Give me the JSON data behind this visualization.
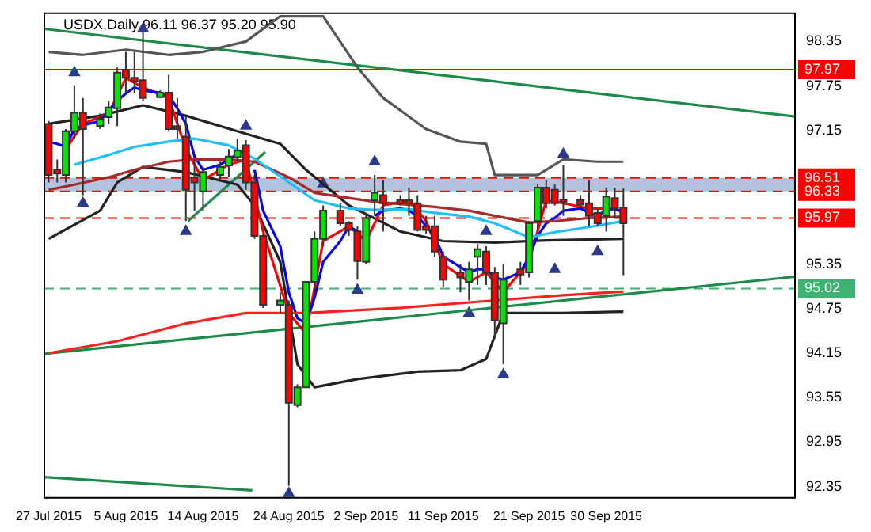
{
  "chart_data": {
    "type": "candlestick",
    "title": "USDX,Daily 96.11 96.37 95.20 95.90",
    "x": [
      "2015-07-27",
      "2015-07-28",
      "2015-07-29",
      "2015-07-30",
      "2015-07-31",
      "2015-08-02",
      "2015-08-03",
      "2015-08-04",
      "2015-08-05",
      "2015-08-06",
      "2015-08-07",
      "2015-08-09",
      "2015-08-10",
      "2015-08-11",
      "2015-08-12",
      "2015-08-13",
      "2015-08-14",
      "2015-08-16",
      "2015-08-17",
      "2015-08-18",
      "2015-08-19",
      "2015-08-20",
      "2015-08-21",
      "2015-08-23",
      "2015-08-24",
      "2015-08-25",
      "2015-08-26",
      "2015-08-27",
      "2015-08-28",
      "2015-08-30",
      "2015-08-31",
      "2015-09-01",
      "2015-09-02",
      "2015-09-03",
      "2015-09-04",
      "2015-09-06",
      "2015-09-07",
      "2015-09-08",
      "2015-09-09",
      "2015-09-10",
      "2015-09-11",
      "2015-09-13",
      "2015-09-14",
      "2015-09-15",
      "2015-09-16",
      "2015-09-17",
      "2015-09-18",
      "2015-09-20",
      "2015-09-21",
      "2015-09-22",
      "2015-09-23",
      "2015-09-24",
      "2015-09-25",
      "2015-09-27",
      "2015-09-28",
      "2015-09-29",
      "2015-09-30",
      "2015-10-01",
      "2015-10-02"
    ],
    "ohlc": [
      [
        97.24,
        97.28,
        96.45,
        96.55
      ],
      [
        96.62,
        96.76,
        96.45,
        96.57
      ],
      [
        96.55,
        97.17,
        96.45,
        97.14
      ],
      [
        97.14,
        97.76,
        97.04,
        97.39
      ],
      [
        97.39,
        97.59,
        96.28,
        97.17
      ],
      [
        97.21,
        97.38,
        97.17,
        97.31
      ],
      [
        97.33,
        97.55,
        97.24,
        97.46
      ],
      [
        97.45,
        98.0,
        97.21,
        97.93
      ],
      [
        97.97,
        98.21,
        97.66,
        97.86
      ],
      [
        97.86,
        98.21,
        97.66,
        97.81
      ],
      [
        97.83,
        98.48,
        97.55,
        97.59
      ],
      [
        97.6,
        97.69,
        97.59,
        97.66
      ],
      [
        97.66,
        97.9,
        97.14,
        97.17
      ],
      [
        97.21,
        97.59,
        97.04,
        97.17
      ],
      [
        97.07,
        97.35,
        95.93,
        96.35
      ],
      [
        96.52,
        96.76,
        96.07,
        96.45
      ],
      [
        96.33,
        96.66,
        96.07,
        96.59
      ],
      [
        96.55,
        96.73,
        96.48,
        96.66
      ],
      [
        96.68,
        96.9,
        96.52,
        96.8
      ],
      [
        96.79,
        97.04,
        96.73,
        96.88
      ],
      [
        96.95,
        97.02,
        96.35,
        96.45
      ],
      [
        96.45,
        96.55,
        95.69,
        95.73
      ],
      [
        95.73,
        95.76,
        94.76,
        94.8
      ],
      [
        94.8,
        94.97,
        94.69,
        94.86
      ],
      [
        94.8,
        94.86,
        92.36,
        93.48
      ],
      [
        93.45,
        93.73,
        93.42,
        93.69
      ],
      [
        93.69,
        95.11,
        93.69,
        95.11
      ],
      [
        95.11,
        95.79,
        94.97,
        95.69
      ],
      [
        95.69,
        96.14,
        95.59,
        96.07
      ],
      [
        96.07,
        96.17,
        95.86,
        95.9
      ],
      [
        95.9,
        95.93,
        95.73,
        95.81
      ],
      [
        95.79,
        95.86,
        95.14,
        95.39
      ],
      [
        95.38,
        96.04,
        95.35,
        95.97
      ],
      [
        96.21,
        96.55,
        96.0,
        96.31
      ],
      [
        96.28,
        96.48,
        95.79,
        96.17
      ],
      [
        96.21,
        96.28,
        96.14,
        96.17
      ],
      [
        96.21,
        96.38,
        96.0,
        96.17
      ],
      [
        96.17,
        96.28,
        95.79,
        95.81
      ],
      [
        95.86,
        96.0,
        95.76,
        95.81
      ],
      [
        95.86,
        96.0,
        95.45,
        95.52
      ],
      [
        95.45,
        95.52,
        95.04,
        95.14
      ],
      [
        95.24,
        95.35,
        94.97,
        95.17
      ],
      [
        95.11,
        95.38,
        94.86,
        95.28
      ],
      [
        95.45,
        95.62,
        95.07,
        95.55
      ],
      [
        95.52,
        95.59,
        95.07,
        95.24
      ],
      [
        95.24,
        95.31,
        94.35,
        94.59
      ],
      [
        94.55,
        95.35,
        94.0,
        95.14
      ],
      [
        95.28,
        95.38,
        95.07,
        95.21
      ],
      [
        95.24,
        95.93,
        95.17,
        95.9
      ],
      [
        95.93,
        96.42,
        95.79,
        96.38
      ],
      [
        96.38,
        96.48,
        96.1,
        96.17
      ],
      [
        96.35,
        96.42,
        96.14,
        96.17
      ],
      [
        96.22,
        96.69,
        96.0,
        96.19
      ],
      [
        96.21,
        96.28,
        96.1,
        96.15
      ],
      [
        96.17,
        96.48,
        95.86,
        96.0
      ],
      [
        96.04,
        96.1,
        95.86,
        95.9
      ],
      [
        96.0,
        96.38,
        95.79,
        96.26
      ],
      [
        96.24,
        96.38,
        95.97,
        96.1
      ],
      [
        96.11,
        96.37,
        95.2,
        95.9
      ]
    ],
    "colors": [
      "#ff0000",
      "#ff0000",
      "#00e600",
      "#00e600",
      "#ff0000",
      "#00e600",
      "#00e600",
      "#00e600",
      "#ff0000",
      "#ff0000",
      "#ff0000",
      "#00e600",
      "#ff0000",
      "#ff0000",
      "#ff0000",
      "#ff0000",
      "#00e600",
      "#00e600",
      "#00e600",
      "#00e600",
      "#ff0000",
      "#ff0000",
      "#ff0000",
      "#00e600",
      "#ff0000",
      "#00e600",
      "#00e600",
      "#00e600",
      "#00e600",
      "#ff0000",
      "#ff0000",
      "#ff0000",
      "#00e600",
      "#00e600",
      "#ff0000",
      "#ff0000",
      "#ff0000",
      "#ff0000",
      "#ff0000",
      "#ff0000",
      "#ff0000",
      "#ff0000",
      "#00e600",
      "#00e600",
      "#ff0000",
      "#ff0000",
      "#00e600",
      "#ff0000",
      "#00e600",
      "#00e600",
      "#ff0000",
      "#ff0000",
      "#ff0000",
      "#ff0000",
      "#ff0000",
      "#ff0000",
      "#00e600",
      "#ff0000",
      "#ff0000"
    ],
    "series": [
      {
        "type": "line",
        "color": "#1ebfff",
        "x": [
          "2015-07-30",
          "2015-08-03",
          "2015-08-06",
          "2015-08-10",
          "2015-08-13",
          "2015-08-17",
          "2015-08-20",
          "2015-08-24",
          "2015-08-27",
          "2015-08-31",
          "2015-09-03",
          "2015-09-07",
          "2015-09-10",
          "2015-09-14",
          "2015-09-17",
          "2015-09-21",
          "2015-09-24",
          "2015-09-28",
          "2015-10-02"
        ],
        "values": [
          96.69,
          96.82,
          96.93,
          97.0,
          97.04,
          96.95,
          96.77,
          96.45,
          96.21,
          96.1,
          96.08,
          96.09,
          96.04,
          95.99,
          95.9,
          95.71,
          95.78,
          95.85,
          95.93
        ]
      },
      {
        "type": "line",
        "color": "#a52a2a",
        "x": [
          "2015-07-27",
          "2015-07-30",
          "2015-08-03",
          "2015-08-06",
          "2015-08-10",
          "2015-08-13",
          "2015-08-17",
          "2015-08-20",
          "2015-08-24",
          "2015-08-27",
          "2015-08-31",
          "2015-09-03",
          "2015-09-07",
          "2015-09-10",
          "2015-09-14",
          "2015-09-17",
          "2015-09-21",
          "2015-09-24",
          "2015-09-28",
          "2015-10-02"
        ],
        "values": [
          96.35,
          96.42,
          96.52,
          96.62,
          96.73,
          96.76,
          96.76,
          96.73,
          96.52,
          96.31,
          96.24,
          96.19,
          96.15,
          96.12,
          96.07,
          96.0,
          95.91,
          95.93,
          95.97,
          95.99
        ]
      },
      {
        "type": "line",
        "color": "#ff2020",
        "x": [
          "2015-07-27",
          "2015-08-04",
          "2015-08-12",
          "2015-08-19",
          "2015-08-26",
          "2015-09-06",
          "2015-09-17",
          "2015-09-25",
          "2015-10-02"
        ],
        "values": [
          94.15,
          94.31,
          94.55,
          94.69,
          94.69,
          94.76,
          94.86,
          94.93,
          94.98
        ]
      },
      {
        "type": "line",
        "color": "#0000ff",
        "values": [
          97.0,
          96.97,
          96.93,
          97.17,
          97.22,
          97.28,
          97.42,
          97.55,
          97.65,
          97.73,
          97.69,
          97.66,
          97.62,
          97.45,
          97.24,
          96.8,
          96.62,
          96.69,
          96.76,
          96.83,
          null,
          96.62,
          96.07,
          95.59,
          94.97,
          94.62,
          94.55,
          94.9,
          95.38,
          95.66,
          95.86,
          95.79,
          null,
          96.0,
          96.07,
          96.1,
          96.07,
          96.0,
          95.86,
          95.73,
          95.45,
          95.31,
          95.24,
          95.28,
          95.28,
          95.17,
          95.14,
          95.24,
          95.45,
          95.73,
          95.9,
          95.97,
          96.07,
          96.1,
          96.04,
          96.0,
          96.08,
          96.1,
          96.04
        ]
      },
      {
        "type": "line",
        "color": "#ff0000",
        "x": [
          "2015-07-29",
          "2015-07-31",
          "2015-08-03",
          "2015-08-05",
          "2015-08-07",
          "2015-08-10",
          "2015-08-12",
          "2015-08-14",
          "2015-08-17",
          "2015-08-19",
          "2015-08-21",
          "2015-08-24",
          "2015-08-26",
          "2015-08-28",
          "2015-08-31",
          "2015-09-02",
          "2015-09-04",
          "2015-09-07",
          "2015-09-09",
          "2015-09-11",
          "2015-09-14",
          "2015-09-16",
          "2015-09-18",
          "2015-09-21",
          "2015-09-23",
          "2015-09-25",
          "2015-09-28",
          "2015-09-30",
          "2015-10-02"
        ],
        "values": [
          96.9,
          97.24,
          97.38,
          97.86,
          97.73,
          97.59,
          96.9,
          96.48,
          96.69,
          96.76,
          95.79,
          94.69,
          94.41,
          95.66,
          95.86,
          95.66,
          96.14,
          96.21,
          95.93,
          95.35,
          95.11,
          95.24,
          94.97,
          95.38,
          96.21,
          96.17,
          96.1,
          96.1,
          96.07
        ]
      },
      {
        "type": "line",
        "color": "#555555",
        "x": [
          "2015-07-27",
          "2015-07-31",
          "2015-08-05",
          "2015-08-10",
          "2015-08-14",
          "2015-08-19",
          "2015-08-23",
          "2015-08-28",
          "2015-09-01",
          "2015-09-04",
          "2015-09-09",
          "2015-09-13",
          "2015-09-16",
          "2015-09-17",
          "2015-09-22",
          "2015-09-25",
          "2015-09-29",
          "2015-10-02"
        ],
        "values": [
          98.21,
          98.17,
          98.24,
          98.17,
          98.21,
          98.35,
          98.69,
          98.69,
          98.0,
          97.59,
          97.17,
          97.0,
          96.97,
          96.55,
          96.55,
          96.76,
          96.73,
          96.73
        ]
      },
      {
        "type": "line",
        "color": "#222222",
        "x": [
          "2015-07-27",
          "2015-08-02",
          "2015-08-07",
          "2015-08-12",
          "2015-08-18",
          "2015-08-23",
          "2015-08-26",
          "2015-08-31",
          "2015-09-06",
          "2015-09-11",
          "2015-09-17",
          "2015-09-23",
          "2015-10-02"
        ],
        "values": [
          97.24,
          97.35,
          97.49,
          97.35,
          97.14,
          96.97,
          96.62,
          96.14,
          95.79,
          95.66,
          95.64,
          95.67,
          95.69
        ]
      },
      {
        "type": "line",
        "color": "#222222",
        "x": [
          "2015-07-27",
          "2015-08-02",
          "2015-08-04",
          "2015-08-07",
          "2015-08-12",
          "2015-08-18",
          "2015-08-20",
          "2015-08-23",
          "2015-08-25",
          "2015-08-27",
          "2015-09-01",
          "2015-09-08",
          "2015-09-13",
          "2015-09-16",
          "2015-09-18",
          "2015-09-25",
          "2015-10-02"
        ],
        "values": [
          95.69,
          96.07,
          96.45,
          96.66,
          96.59,
          96.42,
          96.14,
          95.38,
          94.0,
          93.69,
          93.8,
          93.9,
          93.92,
          94.07,
          94.69,
          94.69,
          94.71
        ]
      },
      {
        "type": "line",
        "color": "#1e8a4a",
        "x": [
          "2015-07-26T12:00",
          "2015-10-22"
        ],
        "values": [
          98.52,
          97.34
        ]
      },
      {
        "type": "line",
        "color": "#1e8a4a",
        "x": [
          "2015-07-26T12:00",
          "2015-10-22"
        ],
        "values": [
          94.14,
          95.18
        ]
      },
      {
        "type": "line",
        "color": "#1e8a4a",
        "x": [
          "2015-07-26T12:00",
          "2015-08-19T18:00"
        ],
        "values": [
          92.48,
          92.3
        ]
      },
      {
        "type": "line",
        "color": "#1e8a4a",
        "x": [
          "2015-08-12T06:00",
          "2015-08-21T06:00"
        ],
        "values": [
          95.93,
          96.86
        ]
      },
      {
        "type": "scatter",
        "color": "#2b3a8c",
        "marker": "triangle",
        "x": [
          "2015-07-30",
          "2015-08-07",
          "2015-08-19",
          "2015-08-28",
          "2015-09-03",
          "2015-09-16",
          "2015-09-25"
        ],
        "values": [
          97.93,
          98.52,
          97.21,
          96.43,
          96.73,
          95.79,
          96.83
        ]
      },
      {
        "type": "scatter",
        "color": "#2b3a8c",
        "marker": "triangle",
        "x": [
          "2015-07-31",
          "2015-08-12",
          "2015-08-24",
          "2015-09-01",
          "2015-09-14",
          "2015-09-18",
          "2015-09-24",
          "2015-09-29"
        ],
        "values": [
          96.17,
          95.79,
          92.26,
          95.0,
          94.69,
          93.86,
          95.28,
          95.52
        ]
      }
    ],
    "ref_lines": [
      {
        "axis": "y",
        "value": 97.97,
        "label": "97.97",
        "color": "#ff0000",
        "line_style": "solid"
      },
      {
        "axis": "y",
        "value": 96.51,
        "label": "96.51",
        "color": "#ff0000",
        "line_style": "dashed"
      },
      {
        "axis": "y",
        "value": 96.33,
        "label": "96.33",
        "color": "#ff0000",
        "line_style": "dashed"
      },
      {
        "axis": "y",
        "value": 95.97,
        "label": "95.97",
        "color": "#ff0000",
        "line_style": "dashed"
      },
      {
        "axis": "y",
        "value": 95.02,
        "label": "95.02",
        "color": "#3cb371",
        "line_style": "dashed"
      }
    ],
    "bands": [
      {
        "axis": "y",
        "from": 96.33,
        "to": 96.51,
        "color": "#b0c4de"
      }
    ],
    "xlim": [
      "2015-07-26T12:00",
      "2015-10-22"
    ],
    "xticks": [
      {
        "value": "2015-07-27",
        "label": "27 Jul 2015"
      },
      {
        "value": "2015-08-05",
        "label": "5 Aug 2015"
      },
      {
        "value": "2015-08-14",
        "label": "14 Aug 2015"
      },
      {
        "value": "2015-08-24",
        "label": "24 Aug 2015"
      },
      {
        "value": "2015-09-02",
        "label": "2 Sep 2015"
      },
      {
        "value": "2015-09-11",
        "label": "11 Sep 2015"
      },
      {
        "value": "2015-09-21",
        "label": "21 Sep 2015"
      },
      {
        "value": "2015-09-30",
        "label": "30 Sep 2015"
      }
    ],
    "ylim": [
      92.2,
      98.73
    ],
    "yticks": [
      98.35,
      97.75,
      97.15,
      95.35,
      94.75,
      94.15,
      93.55,
      92.95,
      92.35
    ],
    "grid": false,
    "legend": false
  }
}
